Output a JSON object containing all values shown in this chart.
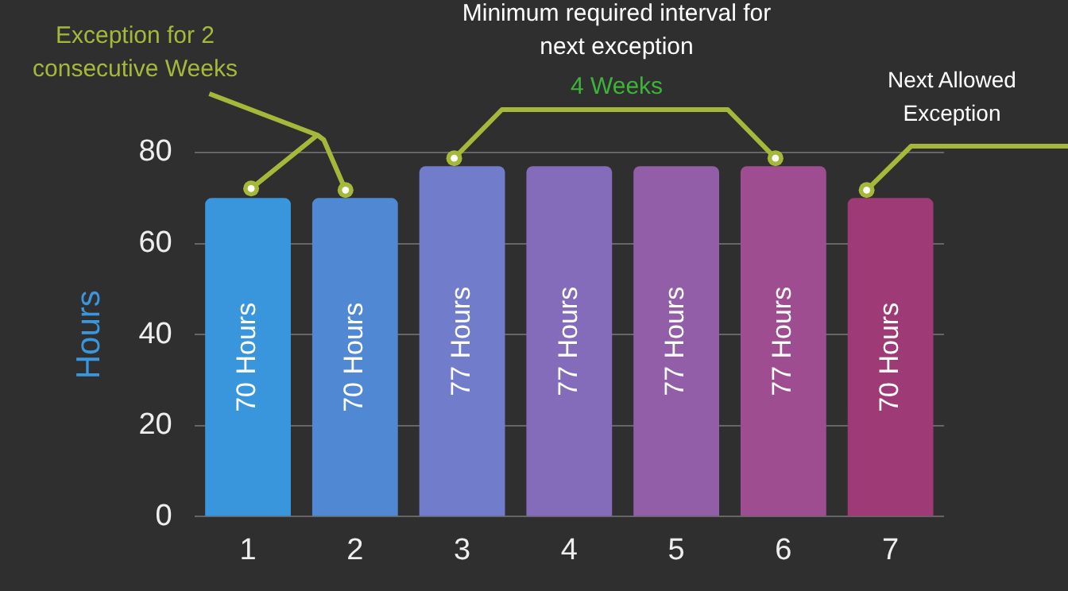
{
  "chart_data": {
    "type": "bar",
    "ylabel": "Hours",
    "categories": [
      "1",
      "2",
      "3",
      "4",
      "5",
      "6",
      "7"
    ],
    "values": [
      70,
      70,
      77,
      77,
      77,
      77,
      70
    ],
    "colors": [
      "#3a96dc",
      "#5088d4",
      "#717dca",
      "#856cbb",
      "#925ea8",
      "#9e4e90",
      "#9e3b77"
    ],
    "value_labels": [
      "70 Hours",
      "70 Hours",
      "77 Hours",
      "77 Hours",
      "77 Hours",
      "77 Hours",
      "70 Hours"
    ],
    "ylim": [
      0,
      80
    ],
    "yticks": [
      0,
      20,
      40,
      60,
      80
    ],
    "grid": "y",
    "legend": false,
    "annotations": [
      "Exception for 2 consecutive Weeks",
      "Minimum required interval for next exception",
      "4 Weeks",
      "Next Allowed Exception"
    ]
  }
}
